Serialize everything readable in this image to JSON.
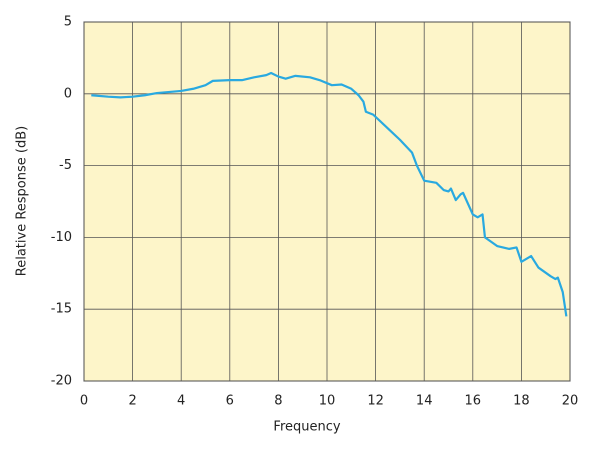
{
  "chart_data": {
    "type": "line",
    "x_label": "Frequency",
    "y_label": "Relative Response (dB)",
    "xlim": [
      0,
      20
    ],
    "xticks": [
      0,
      2,
      4,
      6,
      8,
      10,
      12,
      14,
      16,
      18,
      20
    ],
    "ylim": [
      -20,
      5
    ],
    "yticks": [
      -20,
      -15,
      -10,
      -5,
      0,
      5
    ],
    "grid": true,
    "background": "#fdf5c9",
    "series": [
      {
        "color": "#29a9e0",
        "x": [
          0.3,
          1,
          1.5,
          2,
          2.5,
          3,
          4,
          4.5,
          5,
          5.3,
          6,
          6.5,
          7,
          7.5,
          7.7,
          8,
          8.3,
          8.7,
          9.3,
          9.7,
          10.2,
          10.6,
          11,
          11.3,
          11.5,
          11.6,
          11.9,
          12.5,
          13,
          13.5,
          13.7,
          14,
          14.5,
          14.8,
          15,
          15.1,
          15.3,
          15.5,
          15.6,
          16,
          16.2,
          16.4,
          16.5,
          17,
          17.5,
          17.8,
          18,
          18.4,
          18.7,
          19.2,
          19.4,
          19.5,
          19.7,
          19.85
        ],
        "values": [
          -0.1,
          -0.2,
          -0.25,
          -0.2,
          -0.1,
          0.05,
          0.2,
          0.35,
          0.6,
          0.9,
          0.95,
          0.95,
          1.15,
          1.3,
          1.45,
          1.2,
          1.05,
          1.25,
          1.15,
          0.95,
          0.6,
          0.65,
          0.35,
          -0.1,
          -0.55,
          -1.25,
          -1.45,
          -2.4,
          -3.2,
          -4.1,
          -5.0,
          -6.05,
          -6.2,
          -6.7,
          -6.8,
          -6.6,
          -7.4,
          -7.0,
          -6.9,
          -8.4,
          -8.6,
          -8.4,
          -10.0,
          -10.6,
          -10.8,
          -10.7,
          -11.7,
          -11.3,
          -12.1,
          -12.7,
          -12.9,
          -12.8,
          -13.8,
          -15.5
        ]
      }
    ]
  }
}
